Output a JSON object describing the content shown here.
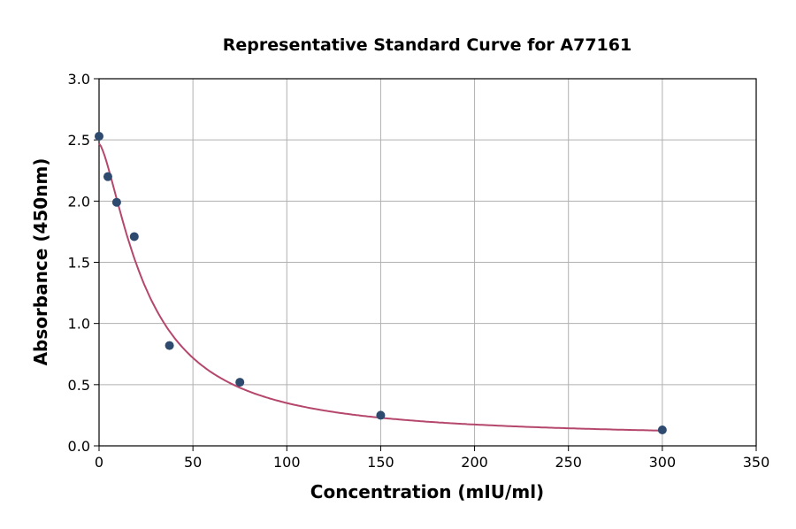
{
  "chart_data": {
    "type": "scatter",
    "title": "Representative Standard Curve for A77161",
    "xlabel": "Concentration (mIU/ml)",
    "ylabel": "Absorbance (450nm)",
    "xlim": [
      0,
      350
    ],
    "ylim": [
      0,
      3.0
    ],
    "xticks": [
      "0",
      "50",
      "100",
      "150",
      "200",
      "250",
      "300",
      "350"
    ],
    "yticks": [
      "0.0",
      "0.5",
      "1.0",
      "1.5",
      "2.0",
      "2.5",
      "3.0"
    ],
    "grid": true,
    "points": [
      {
        "x": 0,
        "y": 2.53
      },
      {
        "x": 4.69,
        "y": 2.2
      },
      {
        "x": 9.38,
        "y": 1.99
      },
      {
        "x": 18.75,
        "y": 1.71
      },
      {
        "x": 37.5,
        "y": 0.82
      },
      {
        "x": 75,
        "y": 0.52
      },
      {
        "x": 150,
        "y": 0.25
      },
      {
        "x": 300,
        "y": 0.13
      }
    ],
    "colors": {
      "points": "#2e4a6e",
      "curve": "#b5476d",
      "grid": "#b0b0b0"
    }
  }
}
